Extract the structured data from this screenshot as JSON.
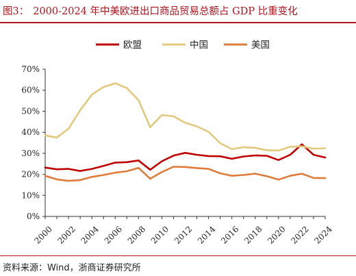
{
  "title": {
    "prefix": "图3：",
    "text": "2000-2024 年中美欧进出口商品贸易总额占 GDP 比重变化"
  },
  "source": "资料来源：Wind，浙商证券研究所",
  "chart_data": {
    "type": "line",
    "title": "2000-2024 年中美欧进出口商品贸易总额占 GDP 比重变化",
    "xlabel": "",
    "ylabel": "",
    "legend_position": "top",
    "grid": false,
    "xlim": [
      2000,
      2024
    ],
    "ylim": [
      0,
      70
    ],
    "x_ticks": [
      "2000",
      "2002",
      "2004",
      "2006",
      "2008",
      "2010",
      "2012",
      "2014",
      "2016",
      "2018",
      "2020",
      "2022",
      "2024"
    ],
    "y_ticks": [
      "0%",
      "10%",
      "20%",
      "30%",
      "40%",
      "50%",
      "60%",
      "70%"
    ],
    "x": [
      2000,
      2001,
      2002,
      2003,
      2004,
      2005,
      2006,
      2007,
      2008,
      2009,
      2010,
      2011,
      2012,
      2013,
      2014,
      2015,
      2016,
      2017,
      2018,
      2019,
      2020,
      2021,
      2022,
      2023,
      2024
    ],
    "series": [
      {
        "name": "欧盟",
        "color": "#c00000",
        "values": [
          23.2,
          22.4,
          22.6,
          21.6,
          22.6,
          24.0,
          25.6,
          25.8,
          26.6,
          22.2,
          26.2,
          28.9,
          30.2,
          29.3,
          28.7,
          28.6,
          27.4,
          28.5,
          29.0,
          28.8,
          26.8,
          29.3,
          34.3,
          29.3,
          28.0
        ]
      },
      {
        "name": "中国",
        "color": "#e2c97e",
        "values": [
          38.5,
          37.5,
          41.7,
          50.5,
          57.9,
          61.5,
          63.3,
          61.0,
          55.3,
          42.4,
          48.2,
          47.6,
          44.5,
          42.8,
          40.2,
          34.8,
          32.0,
          32.9,
          32.6,
          31.5,
          31.3,
          33.1,
          33.3,
          32.2,
          32.4
        ]
      },
      {
        "name": "美国",
        "color": "#e07b39",
        "values": [
          19.3,
          17.6,
          16.9,
          17.3,
          18.8,
          19.7,
          20.8,
          21.5,
          23.1,
          17.9,
          21.1,
          23.6,
          23.5,
          23.0,
          22.6,
          20.5,
          19.3,
          19.7,
          20.3,
          19.1,
          17.5,
          19.3,
          20.3,
          18.3,
          18.2
        ]
      }
    ]
  }
}
